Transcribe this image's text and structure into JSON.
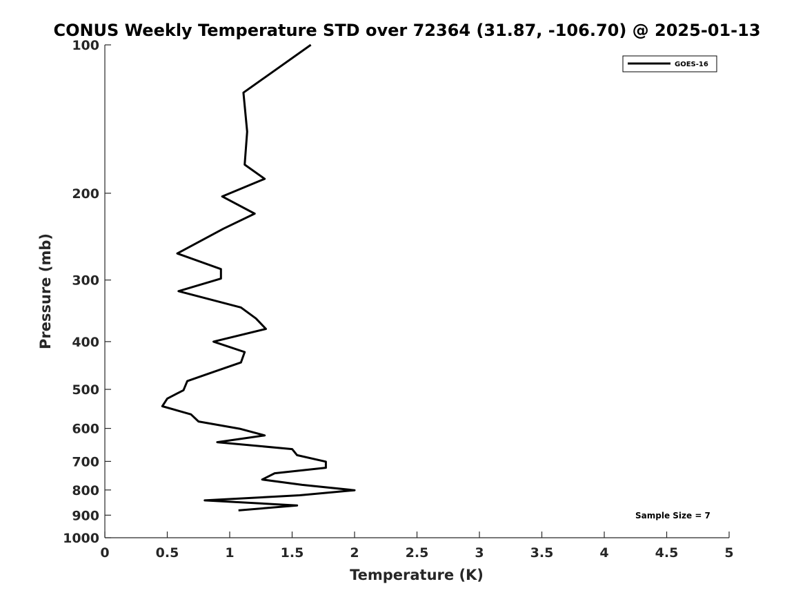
{
  "chart_data": {
    "type": "line",
    "title": "CONUS Weekly Temperature STD over 72364 (31.87, -106.70) @ 2025-01-13",
    "xlabel": "Temperature (K)",
    "ylabel": "Pressure (mb)",
    "xlim": [
      0,
      5
    ],
    "ylim": [
      100,
      1000
    ],
    "yscale": "log",
    "y_reversed": true,
    "x_ticks": [
      "0",
      "0.5",
      "1",
      "1.5",
      "2",
      "2.5",
      "3",
      "3.5",
      "4",
      "4.5",
      "5"
    ],
    "y_ticks": [
      "100",
      "200",
      "300",
      "400",
      "500",
      "600",
      "700",
      "800",
      "900",
      "1000"
    ],
    "grid": false,
    "legend": {
      "position": "top-right",
      "entries": [
        "GOES-16"
      ]
    },
    "annotation": "Sample Size = 7",
    "series": [
      {
        "name": "GOES-16",
        "color": "#000000",
        "points": [
          {
            "x": 1.65,
            "y": 100
          },
          {
            "x": 1.11,
            "y": 125
          },
          {
            "x": 1.14,
            "y": 150
          },
          {
            "x": 1.12,
            "y": 175
          },
          {
            "x": 1.28,
            "y": 187
          },
          {
            "x": 0.94,
            "y": 203
          },
          {
            "x": 1.2,
            "y": 220
          },
          {
            "x": 0.95,
            "y": 236
          },
          {
            "x": 0.58,
            "y": 265
          },
          {
            "x": 0.93,
            "y": 285
          },
          {
            "x": 0.93,
            "y": 298
          },
          {
            "x": 0.59,
            "y": 316
          },
          {
            "x": 1.09,
            "y": 341
          },
          {
            "x": 1.21,
            "y": 359
          },
          {
            "x": 1.29,
            "y": 377
          },
          {
            "x": 0.87,
            "y": 400
          },
          {
            "x": 1.12,
            "y": 420
          },
          {
            "x": 1.09,
            "y": 441
          },
          {
            "x": 0.88,
            "y": 460
          },
          {
            "x": 0.66,
            "y": 481
          },
          {
            "x": 0.63,
            "y": 502
          },
          {
            "x": 0.5,
            "y": 522
          },
          {
            "x": 0.46,
            "y": 541
          },
          {
            "x": 0.69,
            "y": 562
          },
          {
            "x": 0.75,
            "y": 581
          },
          {
            "x": 1.08,
            "y": 601
          },
          {
            "x": 1.28,
            "y": 620
          },
          {
            "x": 0.9,
            "y": 640
          },
          {
            "x": 1.5,
            "y": 661
          },
          {
            "x": 1.54,
            "y": 680
          },
          {
            "x": 1.77,
            "y": 701
          },
          {
            "x": 1.77,
            "y": 721
          },
          {
            "x": 1.36,
            "y": 740
          },
          {
            "x": 1.26,
            "y": 762
          },
          {
            "x": 1.58,
            "y": 781
          },
          {
            "x": 2.0,
            "y": 801
          },
          {
            "x": 1.56,
            "y": 820
          },
          {
            "x": 0.8,
            "y": 840
          },
          {
            "x": 1.54,
            "y": 860
          },
          {
            "x": 1.07,
            "y": 880
          }
        ]
      }
    ]
  }
}
